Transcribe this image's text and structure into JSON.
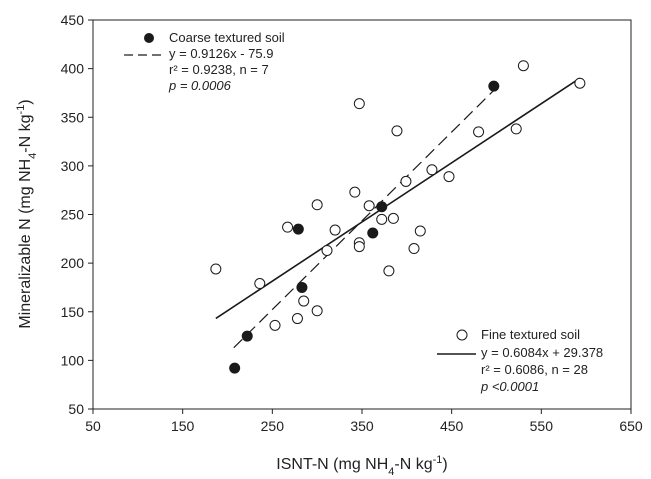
{
  "chart_data": {
    "type": "scatter",
    "xlabel": "ISNT-N (mg NH₄-N kg⁻¹)",
    "ylabel": "Mineralizable N (mg NH₄-N kg⁻¹)",
    "xlim": [
      50,
      650
    ],
    "ylim": [
      50,
      450
    ],
    "x_ticks": [
      50,
      150,
      250,
      350,
      450,
      550,
      650
    ],
    "y_ticks": [
      50,
      100,
      150,
      200,
      250,
      300,
      350,
      400,
      450
    ],
    "grid": false,
    "series": [
      {
        "name": "Coarse textured soil",
        "marker": "filled-circle",
        "color": "#1a1a1a",
        "points": [
          [
            208,
            92
          ],
          [
            222,
            125
          ],
          [
            279,
            235
          ],
          [
            283,
            175
          ],
          [
            362,
            231
          ],
          [
            372,
            258
          ],
          [
            497,
            382
          ]
        ],
        "fit": {
          "style": "dashed",
          "equation": "y = 0.9126x - 75.9",
          "stats": "r² = 0.9238, n = 7",
          "p": "p = 0.0006",
          "slope": 0.9126,
          "intercept": -75.9,
          "x_range": [
            207,
            497
          ]
        },
        "legend_position": "top-left"
      },
      {
        "name": "Fine textured soil",
        "marker": "open-circle",
        "color": "#1a1a1a",
        "points": [
          [
            187,
            194
          ],
          [
            236,
            179
          ],
          [
            253,
            136
          ],
          [
            267,
            237
          ],
          [
            278,
            143
          ],
          [
            285,
            161
          ],
          [
            300,
            151
          ],
          [
            300,
            260
          ],
          [
            311,
            213
          ],
          [
            320,
            234
          ],
          [
            342,
            273
          ],
          [
            347,
            364
          ],
          [
            347,
            221
          ],
          [
            347,
            217
          ],
          [
            358,
            259
          ],
          [
            372,
            245
          ],
          [
            380,
            192
          ],
          [
            385,
            246
          ],
          [
            389,
            336
          ],
          [
            399,
            284
          ],
          [
            408,
            215
          ],
          [
            415,
            233
          ],
          [
            428,
            296
          ],
          [
            447,
            289
          ],
          [
            480,
            335
          ],
          [
            522,
            338
          ],
          [
            530,
            403
          ],
          [
            593,
            385
          ]
        ],
        "fit": {
          "style": "solid",
          "equation": "y = 0.6084x + 29.378",
          "stats": "r² = 0.6086, n = 28",
          "p": "p <0.0001",
          "slope": 0.6084,
          "intercept": 29.378,
          "x_range": [
            187,
            593
          ]
        },
        "legend_position": "bottom-right"
      }
    ]
  }
}
